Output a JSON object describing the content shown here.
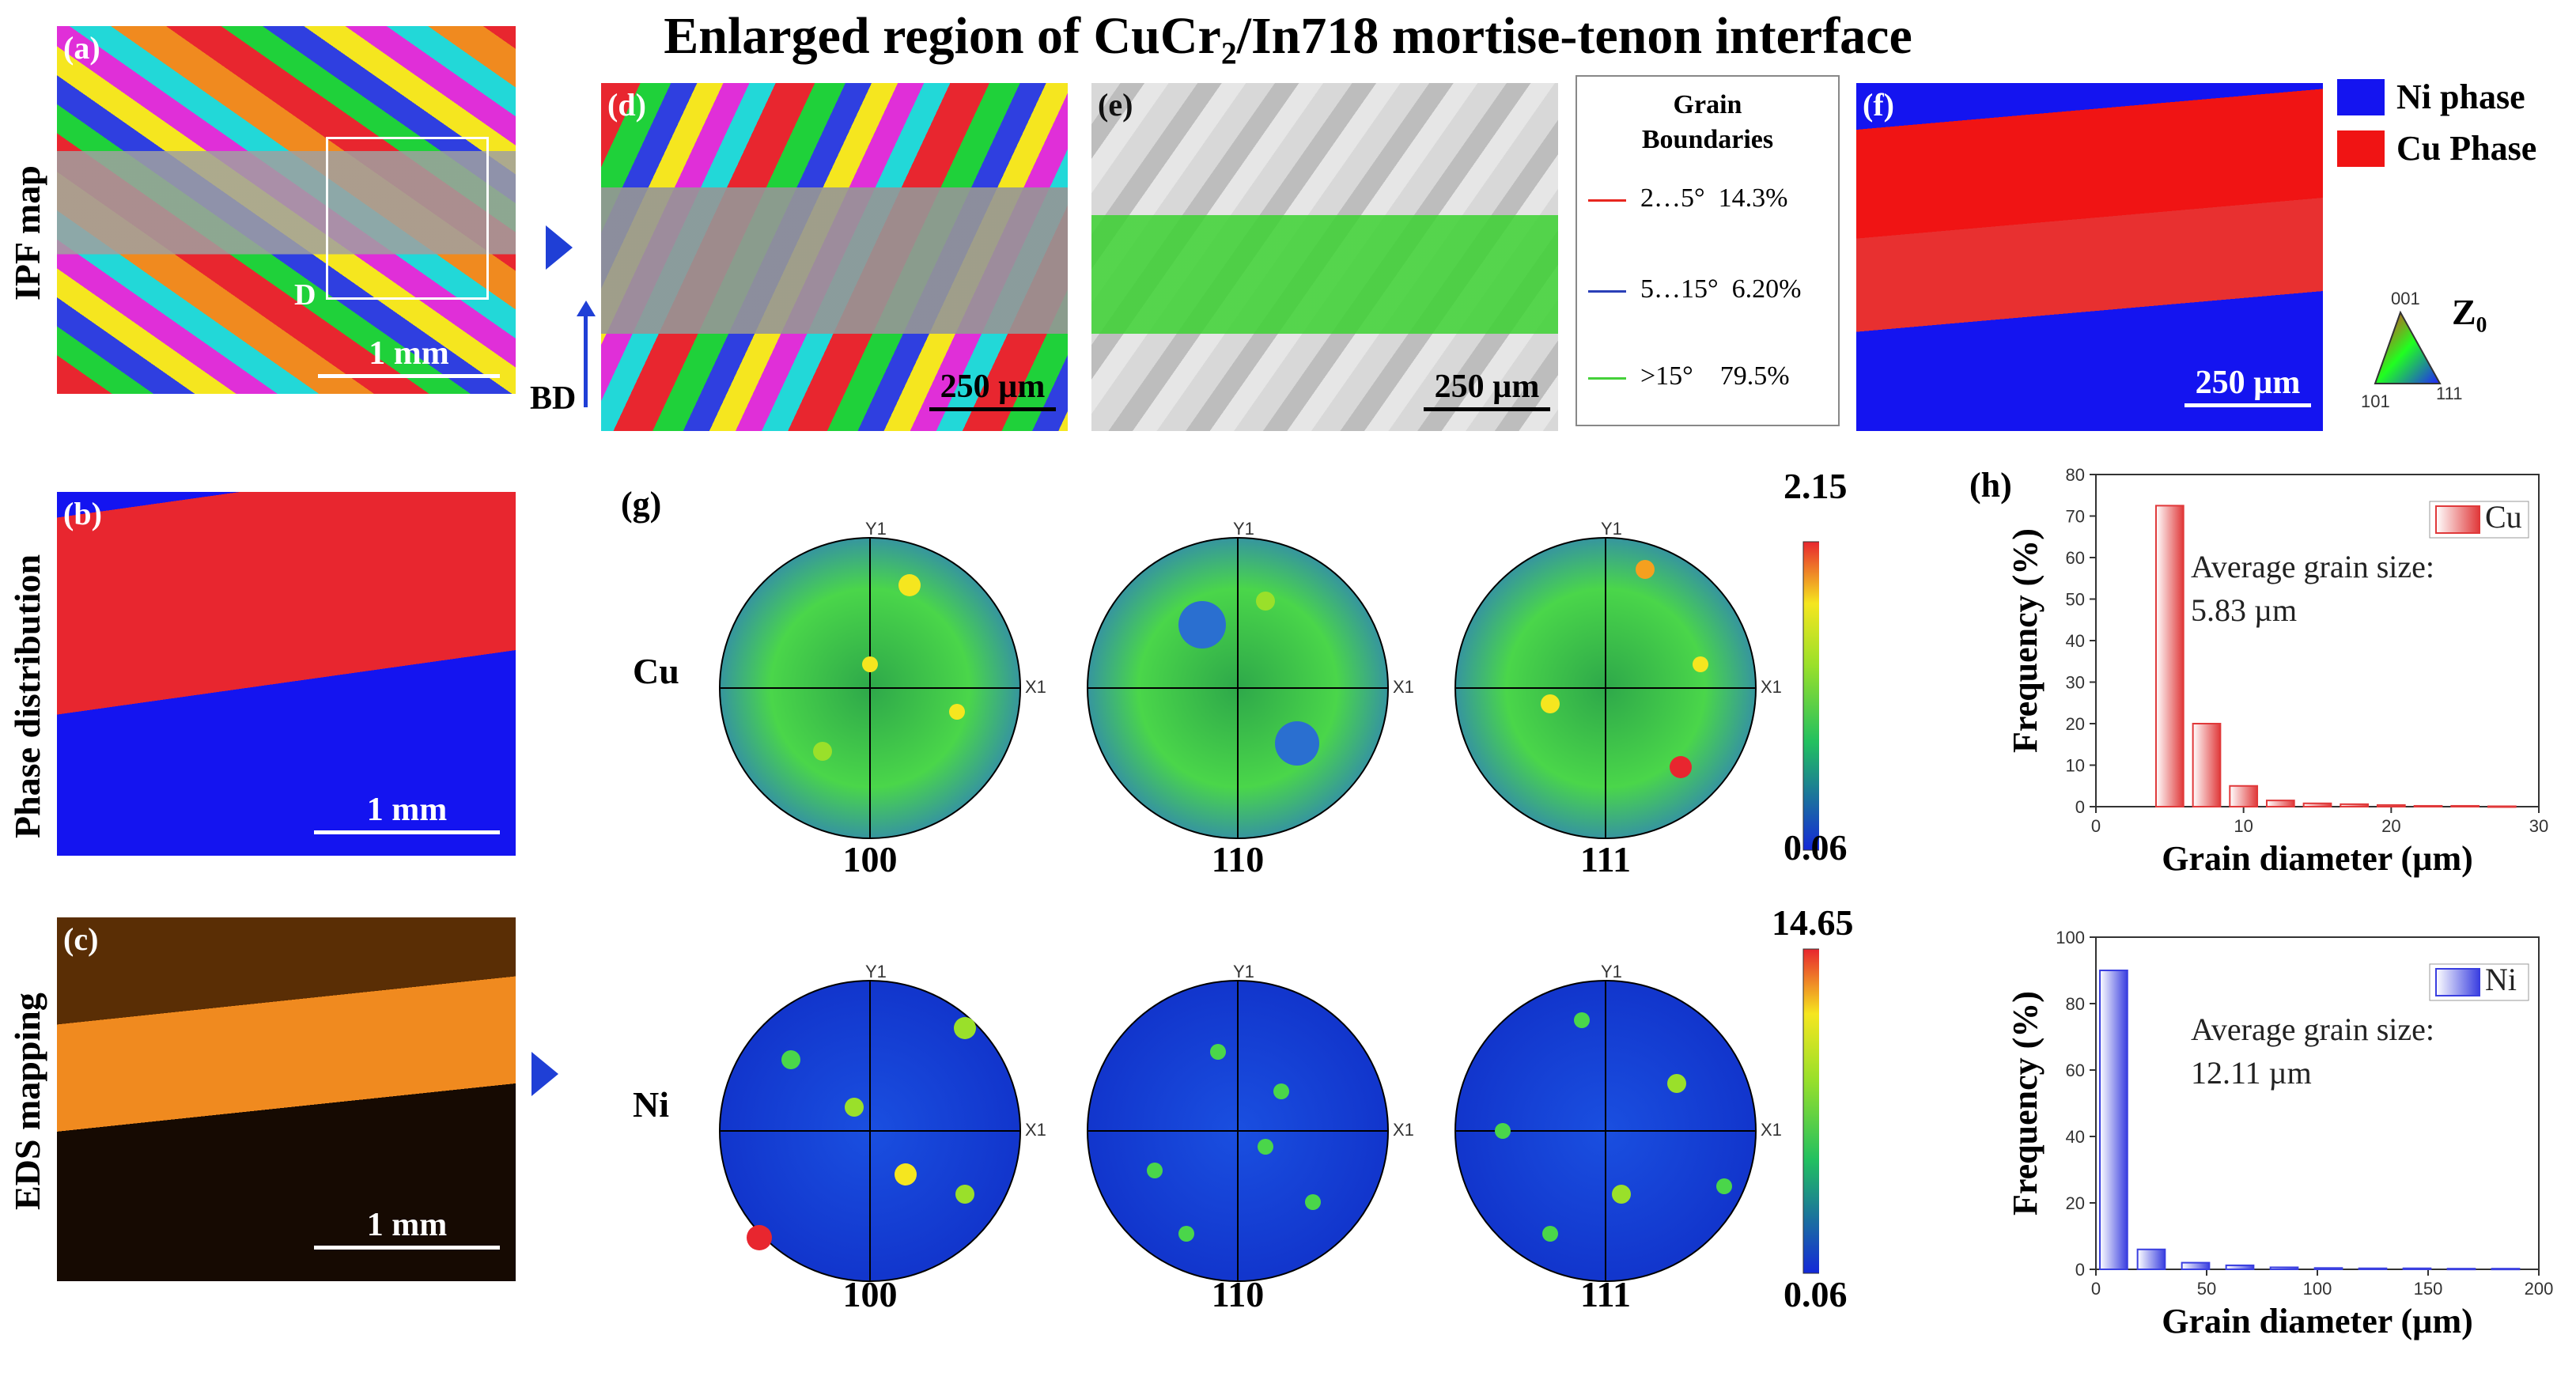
{
  "title": "Enlarged region of CuCr₂/In718 mortise-tenon interface",
  "row_labels": {
    "ipf": "IPF map",
    "phase": "Phase distribution",
    "eds": "EDS mapping"
  },
  "panels": {
    "a": {
      "label": "(a)",
      "box_label": "D",
      "scale": "1 mm"
    },
    "b": {
      "label": "(b)",
      "scale": "1 mm"
    },
    "c": {
      "label": "(c)",
      "scale": "1 mm"
    },
    "d": {
      "label": "(d)",
      "scale": "250 µm"
    },
    "e": {
      "label": "(e)",
      "scale": "250 µm"
    },
    "f": {
      "label": "(f)",
      "scale": "250 µm"
    },
    "g": {
      "label": "(g)"
    },
    "h": {
      "label": "(h)"
    }
  },
  "bd_label": "BD",
  "grain_boundaries": {
    "title_line1": "Grain",
    "title_line2": "Boundaries",
    "rows": [
      {
        "range": "2…5°",
        "pct": "14.3%",
        "color": "#e8271f"
      },
      {
        "range": "5…15°",
        "pct": "6.20%",
        "color": "#2a3fb8"
      },
      {
        "range": ">15°",
        "pct": "79.5%",
        "color": "#45d13a"
      }
    ]
  },
  "phase_legend": [
    {
      "label": "Ni phase",
      "color": "#1414f0"
    },
    {
      "label": "Cu Phase",
      "color": "#f01414"
    }
  ],
  "ipf_key": {
    "title": "Z₀",
    "corner_top": "001",
    "corner_left": "101",
    "corner_right": "111"
  },
  "pole_figures": {
    "rows": [
      "Cu",
      "Ni"
    ],
    "planes": [
      "100",
      "110",
      "111"
    ],
    "axis_y": "Y1",
    "axis_x": "X1",
    "cu_range": {
      "max": "2.15",
      "min": "0.06"
    },
    "ni_range": {
      "max": "14.65",
      "min": "0.06"
    }
  },
  "chart_data": [
    {
      "type": "bar",
      "legend": "Cu",
      "color": "#e0393a",
      "xlabel": "Grain diameter (µm)",
      "ylabel": "Frequency (%)",
      "xlim": [
        0,
        30
      ],
      "ylim": [
        0,
        80
      ],
      "xticks": [
        "0",
        "10",
        "20",
        "30"
      ],
      "yticks": [
        "0",
        "10",
        "20",
        "30",
        "40",
        "50",
        "60",
        "70",
        "80"
      ],
      "x": [
        5,
        7.5,
        10,
        12.5,
        15,
        17.5,
        20,
        22.5,
        25,
        27.5
      ],
      "values": [
        72.5,
        20,
        5,
        1.5,
        0.8,
        0.6,
        0.4,
        0.2,
        0.2,
        0.1
      ],
      "annotation_line1": "Average grain size:",
      "annotation_line2": "5.83 µm"
    },
    {
      "type": "bar",
      "legend": "Ni",
      "color": "#3a3fe0",
      "xlabel": "Grain diameter (µm)",
      "ylabel": "Frequency (%)",
      "xlim": [
        0,
        200
      ],
      "ylim": [
        0,
        100
      ],
      "xticks": [
        "0",
        "50",
        "100",
        "150",
        "200"
      ],
      "yticks": [
        "0",
        "20",
        "40",
        "60",
        "80",
        "100"
      ],
      "x": [
        8,
        25,
        45,
        65,
        85,
        105,
        125,
        145,
        165,
        185
      ],
      "values": [
        90,
        6,
        2,
        1.2,
        0.6,
        0.4,
        0.3,
        0.3,
        0.2,
        0.2
      ],
      "annotation_line1": "Average grain size:",
      "annotation_line2": "12.11 µm"
    }
  ]
}
